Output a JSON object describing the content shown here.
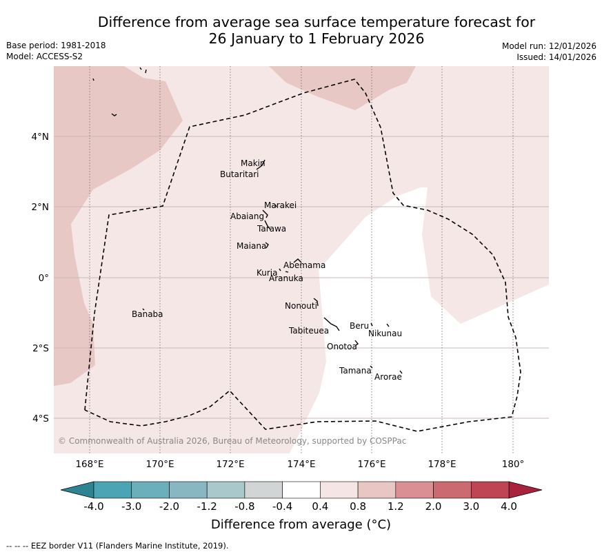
{
  "title_line1": "Difference from average sea surface temperature forecast for",
  "title_line2": "26 January to 1 February 2026",
  "base_period": "Base period: 1981-2018",
  "model": "Model: ACCESS-S2",
  "model_run": "Model run: 12/01/2026",
  "issued": "Issued: 14/01/2026",
  "copyright": "© Commonwealth of Australia 2026, Bureau of Meteorology, supported by COSPPac",
  "colorbar_label": "Difference from average (°C)",
  "colorbar_ticks": [
    "-4.0",
    "-3.0",
    "-2.0",
    "-1.2",
    "-0.8",
    "-0.4",
    "0.4",
    "0.8",
    "1.2",
    "2.0",
    "3.0",
    "4.0"
  ],
  "colorbar_colors": [
    "#4aa4b4",
    "#6bafbb",
    "#88b7c1",
    "#a8c8cb",
    "#d2d5d5",
    "#ffffff",
    "#f5e5e4",
    "#e8c6c3",
    "#d98f93",
    "#cc6a72",
    "#bf4454"
  ],
  "colorbar_extend_low": "#2f8494",
  "colorbar_extend_high": "#a8213d",
  "lon_ticks": [
    "168°E",
    "170°E",
    "172°E",
    "174°E",
    "176°E",
    "178°E",
    "180°"
  ],
  "lat_ticks": [
    "4°N",
    "2°N",
    "0°",
    "2°S",
    "4°S"
  ],
  "islands": [
    "Makin",
    "Butaritari",
    "Marakei",
    "Abaiang",
    "Tarawa",
    "Maiana",
    "Abemama",
    "Kuria",
    "Aranuka",
    "Nonouti",
    "Tabiteuea",
    "Beru",
    "Nikunau",
    "Onotoa",
    "Tamana",
    "Arorae",
    "Banaba"
  ],
  "footer": "--  --  -- EEZ border V11 (Flanders Marine Institute, 2019).",
  "map_colors": {
    "light_pink": "#f5e7e6",
    "mid_pink": "#e8c8c4",
    "grid": "#c8b8b8"
  }
}
